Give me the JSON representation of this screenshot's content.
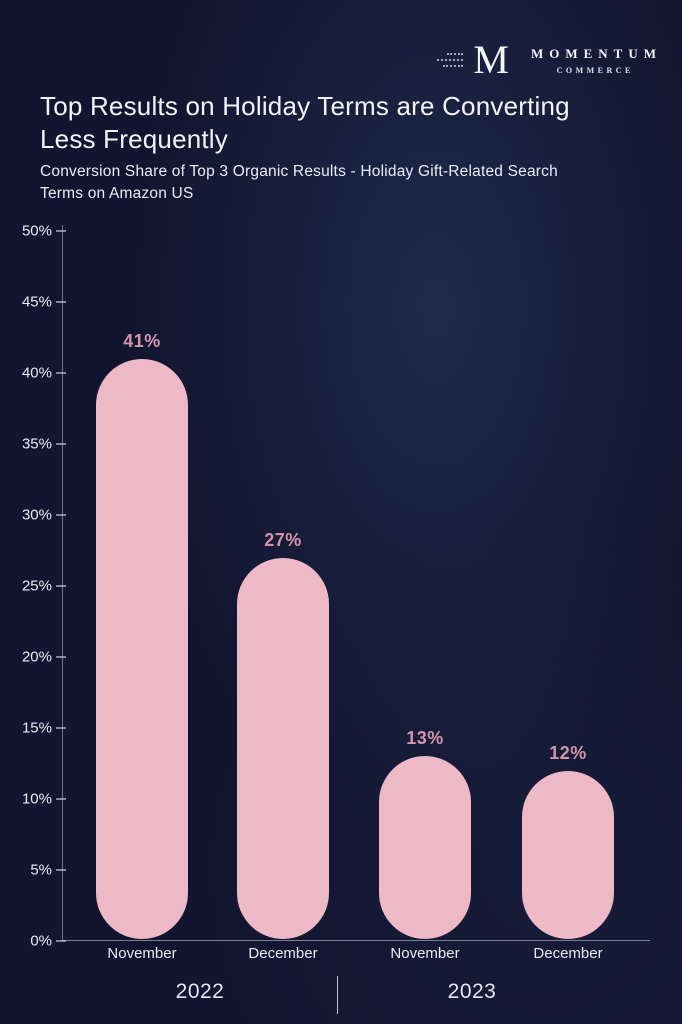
{
  "logo": {
    "monogram": "M",
    "name": "MOMENTUM",
    "subname": "COMMERCE"
  },
  "header": {
    "title": "Top Results on Holiday Terms are Converting Less Frequently",
    "subtitle": "Conversion Share of Top 3 Organic Results - Holiday Gift-Related Search Terms on Amazon US"
  },
  "chart_data": {
    "type": "bar",
    "title": "Top Results on Holiday Terms are Converting Less Frequently",
    "subtitle": "Conversion Share of Top 3 Organic Results - Holiday Gift-Related Search Terms on Amazon US",
    "categories": [
      "November",
      "December",
      "November",
      "December"
    ],
    "values": [
      41,
      27,
      13,
      12
    ],
    "value_labels": [
      "41%",
      "27%",
      "13%",
      "12%"
    ],
    "groups": [
      "2022",
      "2023"
    ],
    "group_assignment": [
      0,
      0,
      1,
      1
    ],
    "xlabel": "",
    "ylabel": "",
    "ylim": [
      0,
      50
    ],
    "ytick_step": 5,
    "ytick_suffix": "%",
    "grid": "off",
    "legend": "none",
    "colors": {
      "background": "#121530",
      "bar": "#edb9c7",
      "value_label": "#d495ab",
      "axis_text": "#e8ebf2",
      "title_text": "#f2f4fa"
    }
  }
}
